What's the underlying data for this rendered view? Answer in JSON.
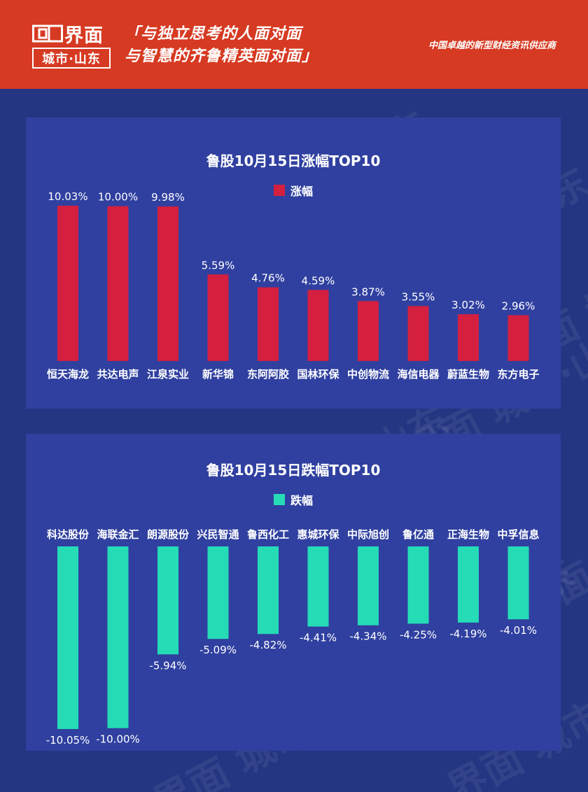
{
  "header": {
    "brand": "界面",
    "sub_brand": "城市·山东",
    "slogan_line1": "「与独立思考的人面对面",
    "slogan_line2": "与智慧的齐鲁精英面对面」",
    "tagline": "中国卓越的新型财经资讯供应商"
  },
  "watermark_text": "界面 城市·山东",
  "colors": {
    "header_bg": "#d63a22",
    "page_bg": "#243582",
    "panel_bg": "#3040a0",
    "rise_bar": "#d41f3f",
    "fall_bar": "#25dcb6"
  },
  "chart_data": [
    {
      "type": "bar",
      "title": "鲁股10月15日涨幅TOP10",
      "legend": "涨幅",
      "series": [
        {
          "name": "涨幅",
          "values": [
            10.03,
            10.0,
            9.98,
            5.59,
            4.76,
            4.59,
            3.87,
            3.55,
            3.02,
            2.96
          ]
        }
      ],
      "categories": [
        "恒天海龙",
        "共达电声",
        "江泉实业",
        "新华锦",
        "东阿阿胶",
        "国林环保",
        "中创物流",
        "海信电器",
        "蔚蓝生物",
        "东方电子"
      ],
      "labels": [
        "10.03%",
        "10.00%",
        "9.98%",
        "5.59%",
        "4.76%",
        "4.59%",
        "3.87%",
        "3.55%",
        "3.02%",
        "2.96%"
      ],
      "ylim": [
        0,
        10.03
      ],
      "legend_position": "top"
    },
    {
      "type": "bar",
      "title": "鲁股10月15日跌幅TOP10",
      "legend": "跌幅",
      "series": [
        {
          "name": "跌幅",
          "values": [
            -10.05,
            -10.0,
            -5.94,
            -5.09,
            -4.82,
            -4.41,
            -4.34,
            -4.25,
            -4.19,
            -4.01
          ]
        }
      ],
      "categories": [
        "科达股份",
        "海联金汇",
        "朗源股份",
        "兴民智通",
        "鲁西化工",
        "惠城环保",
        "中际旭创",
        "鲁亿通",
        "正海生物",
        "中孚信息"
      ],
      "labels": [
        "-10.05%",
        "-10.00%",
        "-5.94%",
        "-5.09%",
        "-4.82%",
        "-4.41%",
        "-4.34%",
        "-4.25%",
        "-4.19%",
        "-4.01%"
      ],
      "ylim": [
        -10.05,
        0
      ],
      "legend_position": "top"
    }
  ]
}
